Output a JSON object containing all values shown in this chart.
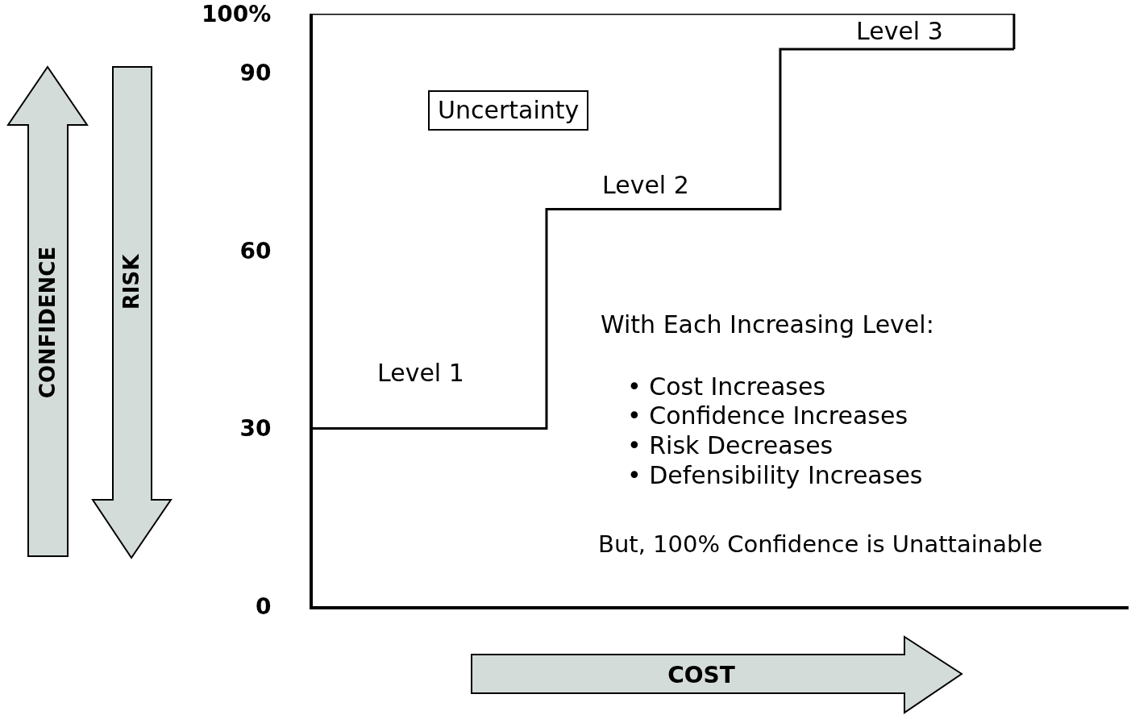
{
  "chart_data": {
    "type": "step",
    "xlabel": "COST",
    "categories": [
      null,
      null,
      null,
      null
    ],
    "values": [
      30,
      67,
      94,
      94
    ],
    "color": "#000000",
    "ylim": [
      0,
      100
    ],
    "yticks": [
      0,
      30,
      60,
      90,
      {
        "value": 100,
        "label": "100%"
      }
    ],
    "ref_lines": [
      {
        "axis": "y",
        "value": 100
      }
    ],
    "annotations": [
      "CONFIDENCE",
      "RISK",
      "Uncertainty",
      "Level 1",
      "Level 2",
      "Level 3",
      "With Each Increasing Level:",
      "• Cost Increases",
      "• Confidence Increases",
      "• Risk Decreases",
      "• Defensibility Increases",
      "But, 100% Confidence is Unattainable"
    ],
    "grid": false,
    "legend": false,
    "marker": "none",
    "line_style": "solid",
    "tick_labels": "y"
  }
}
